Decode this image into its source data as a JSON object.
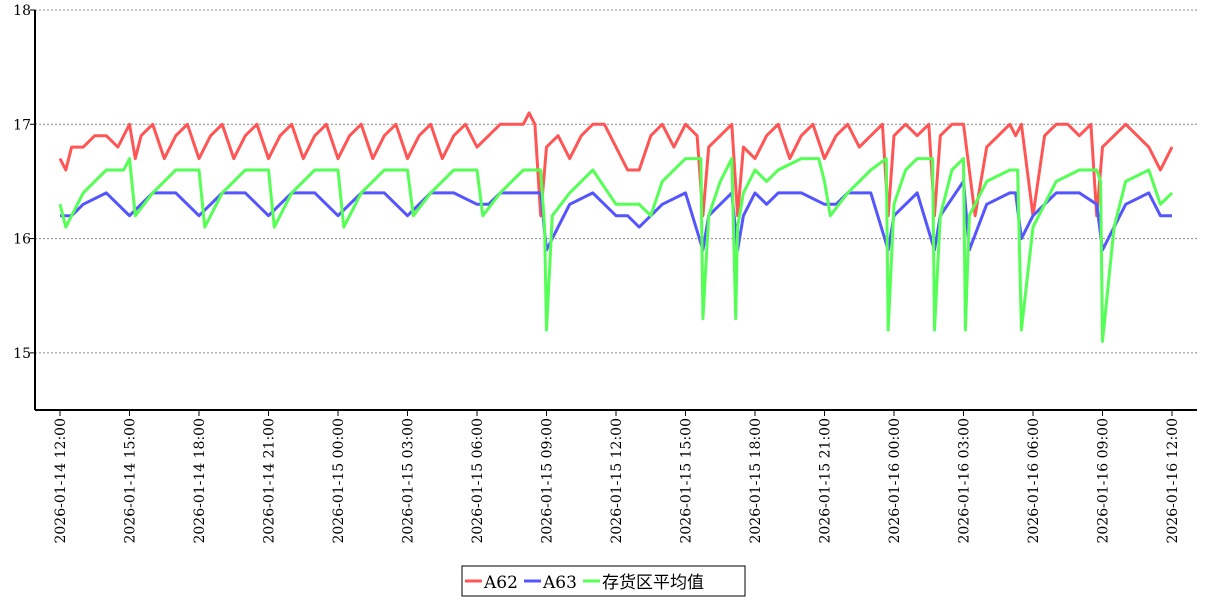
{
  "chart_data": {
    "type": "line",
    "title": "",
    "xlabel": "",
    "ylabel": "",
    "ylim": [
      14.5,
      18
    ],
    "yticks": [
      15,
      16,
      17,
      18
    ],
    "x_range": [
      "2026-01-14 12:00",
      "2026-01-16 12:00"
    ],
    "grid": "horizontal-dotted",
    "legend": "bottom-center",
    "xtick_labels": [
      "2026-01-14 12:00",
      "2026-01-14 15:00",
      "2026-01-14 18:00",
      "2026-01-14 21:00",
      "2026-01-15 00:00",
      "2026-01-15 03:00",
      "2026-01-15 06:00",
      "2026-01-15 09:00",
      "2026-01-15 12:00",
      "2026-01-15 15:00",
      "2026-01-15 18:00",
      "2026-01-15 21:00",
      "2026-01-16 00:00",
      "2026-01-16 03:00",
      "2026-01-16 06:00",
      "2026-01-16 09:00",
      "2026-01-16 12:00"
    ],
    "series": [
      {
        "name": "A62",
        "color": "#ff5555",
        "x": [
          "2026-01-14 12:00",
          "2026-01-14 12:15",
          "2026-01-14 12:30",
          "2026-01-14 13:00",
          "2026-01-14 13:30",
          "2026-01-14 14:00",
          "2026-01-14 14:30",
          "2026-01-14 15:00",
          "2026-01-14 15:15",
          "2026-01-14 15:30",
          "2026-01-14 16:00",
          "2026-01-14 16:30",
          "2026-01-14 17:00",
          "2026-01-14 17:30",
          "2026-01-14 18:00",
          "2026-01-14 18:30",
          "2026-01-14 19:00",
          "2026-01-14 19:30",
          "2026-01-14 20:00",
          "2026-01-14 20:30",
          "2026-01-14 21:00",
          "2026-01-14 21:30",
          "2026-01-14 22:00",
          "2026-01-14 22:30",
          "2026-01-14 23:00",
          "2026-01-14 23:30",
          "2026-01-15 00:00",
          "2026-01-15 00:30",
          "2026-01-15 01:00",
          "2026-01-15 01:30",
          "2026-01-15 02:00",
          "2026-01-15 02:30",
          "2026-01-15 03:00",
          "2026-01-15 03:30",
          "2026-01-15 04:00",
          "2026-01-15 04:30",
          "2026-01-15 05:00",
          "2026-01-15 05:30",
          "2026-01-15 06:00",
          "2026-01-15 06:30",
          "2026-01-15 07:00",
          "2026-01-15 07:30",
          "2026-01-15 08:00",
          "2026-01-15 08:15",
          "2026-01-15 08:30",
          "2026-01-15 08:45",
          "2026-01-15 09:00",
          "2026-01-15 09:30",
          "2026-01-15 10:00",
          "2026-01-15 10:30",
          "2026-01-15 11:00",
          "2026-01-15 11:30",
          "2026-01-15 12:00",
          "2026-01-15 12:30",
          "2026-01-15 13:00",
          "2026-01-15 13:30",
          "2026-01-15 14:00",
          "2026-01-15 14:30",
          "2026-01-15 15:00",
          "2026-01-15 15:30",
          "2026-01-15 15:45",
          "2026-01-15 16:00",
          "2026-01-15 16:30",
          "2026-01-15 17:00",
          "2026-01-15 17:15",
          "2026-01-15 17:30",
          "2026-01-15 18:00",
          "2026-01-15 18:30",
          "2026-01-15 19:00",
          "2026-01-15 19:30",
          "2026-01-15 20:00",
          "2026-01-15 20:30",
          "2026-01-15 21:00",
          "2026-01-15 21:30",
          "2026-01-15 22:00",
          "2026-01-15 22:30",
          "2026-01-15 23:00",
          "2026-01-15 23:30",
          "2026-01-15 23:45",
          "2026-01-16 00:00",
          "2026-01-16 00:30",
          "2026-01-16 01:00",
          "2026-01-16 01:30",
          "2026-01-16 01:45",
          "2026-01-16 02:00",
          "2026-01-16 02:30",
          "2026-01-16 03:00",
          "2026-01-16 03:30",
          "2026-01-16 04:00",
          "2026-01-16 04:30",
          "2026-01-16 05:00",
          "2026-01-16 05:15",
          "2026-01-16 05:30",
          "2026-01-16 06:00",
          "2026-01-16 06:30",
          "2026-01-16 07:00",
          "2026-01-16 07:30",
          "2026-01-16 08:00",
          "2026-01-16 08:30",
          "2026-01-16 08:45",
          "2026-01-16 09:00",
          "2026-01-16 09:30",
          "2026-01-16 10:00",
          "2026-01-16 10:30",
          "2026-01-16 11:00",
          "2026-01-16 11:30",
          "2026-01-16 12:00"
        ],
        "values": [
          16.7,
          16.6,
          16.8,
          16.8,
          16.9,
          16.9,
          16.8,
          17.0,
          16.7,
          16.9,
          17.0,
          16.7,
          16.9,
          17.0,
          16.7,
          16.9,
          17.0,
          16.7,
          16.9,
          17.0,
          16.7,
          16.9,
          17.0,
          16.7,
          16.9,
          17.0,
          16.7,
          16.9,
          17.0,
          16.7,
          16.9,
          17.0,
          16.7,
          16.9,
          17.0,
          16.7,
          16.9,
          17.0,
          16.8,
          16.9,
          17.0,
          17.0,
          17.0,
          17.1,
          17.0,
          16.2,
          16.8,
          16.9,
          16.7,
          16.9,
          17.0,
          17.0,
          16.8,
          16.6,
          16.6,
          16.9,
          17.0,
          16.8,
          17.0,
          16.9,
          16.2,
          16.8,
          16.9,
          17.0,
          16.2,
          16.8,
          16.7,
          16.9,
          17.0,
          16.7,
          16.9,
          17.0,
          16.7,
          16.9,
          17.0,
          16.8,
          16.9,
          17.0,
          16.2,
          16.9,
          17.0,
          16.9,
          17.0,
          16.2,
          16.9,
          17.0,
          17.0,
          16.2,
          16.8,
          16.9,
          17.0,
          16.9,
          17.0,
          16.2,
          16.9,
          17.0,
          17.0,
          16.9,
          17.0,
          16.2,
          16.8,
          16.9,
          17.0,
          16.9,
          16.8,
          16.6,
          16.8
        ]
      },
      {
        "name": "A63",
        "color": "#5555ff",
        "x": [
          "2026-01-14 12:00",
          "2026-01-14 12:30",
          "2026-01-14 13:00",
          "2026-01-14 14:00",
          "2026-01-14 15:00",
          "2026-01-14 15:30",
          "2026-01-14 16:00",
          "2026-01-14 17:00",
          "2026-01-14 18:00",
          "2026-01-14 18:30",
          "2026-01-14 19:00",
          "2026-01-14 20:00",
          "2026-01-14 21:00",
          "2026-01-14 21:30",
          "2026-01-14 22:00",
          "2026-01-14 23:00",
          "2026-01-15 00:00",
          "2026-01-15 00:30",
          "2026-01-15 01:00",
          "2026-01-15 02:00",
          "2026-01-15 03:00",
          "2026-01-15 03:30",
          "2026-01-15 04:00",
          "2026-01-15 05:00",
          "2026-01-15 06:00",
          "2026-01-15 06:30",
          "2026-01-15 07:00",
          "2026-01-15 08:00",
          "2026-01-15 08:45",
          "2026-01-15 09:00",
          "2026-01-15 09:30",
          "2026-01-15 10:00",
          "2026-01-15 11:00",
          "2026-01-15 12:00",
          "2026-01-15 12:30",
          "2026-01-15 13:00",
          "2026-01-15 14:00",
          "2026-01-15 15:00",
          "2026-01-15 15:45",
          "2026-01-15 16:00",
          "2026-01-15 17:00",
          "2026-01-15 17:15",
          "2026-01-15 17:30",
          "2026-01-15 18:00",
          "2026-01-15 18:30",
          "2026-01-15 19:00",
          "2026-01-15 20:00",
          "2026-01-15 21:00",
          "2026-01-15 21:30",
          "2026-01-15 22:00",
          "2026-01-15 23:00",
          "2026-01-15 23:45",
          "2026-01-16 00:00",
          "2026-01-16 01:00",
          "2026-01-16 01:45",
          "2026-01-16 02:00",
          "2026-01-16 03:00",
          "2026-01-16 03:15",
          "2026-01-16 04:00",
          "2026-01-16 05:00",
          "2026-01-16 05:15",
          "2026-01-16 05:30",
          "2026-01-16 06:00",
          "2026-01-16 07:00",
          "2026-01-16 08:00",
          "2026-01-16 08:45",
          "2026-01-16 09:00",
          "2026-01-16 09:30",
          "2026-01-16 10:00",
          "2026-01-16 11:00",
          "2026-01-16 11:30",
          "2026-01-16 12:00"
        ],
        "values": [
          16.2,
          16.2,
          16.3,
          16.4,
          16.2,
          16.3,
          16.4,
          16.4,
          16.2,
          16.3,
          16.4,
          16.4,
          16.2,
          16.3,
          16.4,
          16.4,
          16.2,
          16.3,
          16.4,
          16.4,
          16.2,
          16.3,
          16.4,
          16.4,
          16.3,
          16.3,
          16.4,
          16.4,
          16.4,
          15.9,
          16.1,
          16.3,
          16.4,
          16.2,
          16.2,
          16.1,
          16.3,
          16.4,
          15.9,
          16.2,
          16.4,
          15.9,
          16.2,
          16.4,
          16.3,
          16.4,
          16.4,
          16.3,
          16.3,
          16.4,
          16.4,
          15.9,
          16.2,
          16.4,
          15.9,
          16.2,
          16.5,
          15.9,
          16.3,
          16.4,
          16.4,
          16.0,
          16.2,
          16.4,
          16.4,
          16.3,
          15.9,
          16.1,
          16.3,
          16.4,
          16.2,
          16.2
        ]
      },
      {
        "name": "存货区平均值",
        "color": "#55ff55",
        "x": [
          "2026-01-14 12:00",
          "2026-01-14 12:15",
          "2026-01-14 13:00",
          "2026-01-14 14:00",
          "2026-01-14 14:45",
          "2026-01-14 15:00",
          "2026-01-14 15:15",
          "2026-01-14 16:00",
          "2026-01-14 17:00",
          "2026-01-14 17:45",
          "2026-01-14 18:00",
          "2026-01-14 18:15",
          "2026-01-14 19:00",
          "2026-01-14 20:00",
          "2026-01-14 20:45",
          "2026-01-14 21:00",
          "2026-01-14 21:15",
          "2026-01-14 22:00",
          "2026-01-14 23:00",
          "2026-01-14 23:45",
          "2026-01-15 00:00",
          "2026-01-15 00:15",
          "2026-01-15 01:00",
          "2026-01-15 02:00",
          "2026-01-15 02:45",
          "2026-01-15 03:00",
          "2026-01-15 03:15",
          "2026-01-15 04:00",
          "2026-01-15 05:00",
          "2026-01-15 05:45",
          "2026-01-15 06:00",
          "2026-01-15 06:15",
          "2026-01-15 07:00",
          "2026-01-15 08:00",
          "2026-01-15 08:45",
          "2026-01-15 08:55",
          "2026-01-15 09:00",
          "2026-01-15 09:15",
          "2026-01-15 10:00",
          "2026-01-15 11:00",
          "2026-01-15 12:00",
          "2026-01-15 12:30",
          "2026-01-15 13:00",
          "2026-01-15 13:30",
          "2026-01-15 14:00",
          "2026-01-15 15:00",
          "2026-01-15 15:40",
          "2026-01-15 15:45",
          "2026-01-15 16:00",
          "2026-01-15 16:30",
          "2026-01-15 17:00",
          "2026-01-15 17:10",
          "2026-01-15 17:15",
          "2026-01-15 17:30",
          "2026-01-15 18:00",
          "2026-01-15 18:30",
          "2026-01-15 19:00",
          "2026-01-15 20:00",
          "2026-01-15 20:45",
          "2026-01-15 21:00",
          "2026-01-15 21:15",
          "2026-01-15 22:00",
          "2026-01-15 23:00",
          "2026-01-15 23:40",
          "2026-01-15 23:45",
          "2026-01-16 00:00",
          "2026-01-16 00:30",
          "2026-01-16 01:00",
          "2026-01-16 01:40",
          "2026-01-16 01:45",
          "2026-01-16 02:00",
          "2026-01-16 02:30",
          "2026-01-16 03:00",
          "2026-01-16 03:05",
          "2026-01-16 03:15",
          "2026-01-16 04:00",
          "2026-01-16 05:00",
          "2026-01-16 05:20",
          "2026-01-16 05:30",
          "2026-01-16 06:00",
          "2026-01-16 07:00",
          "2026-01-16 08:00",
          "2026-01-16 08:45",
          "2026-01-16 08:55",
          "2026-01-16 09:00",
          "2026-01-16 09:30",
          "2026-01-16 10:00",
          "2026-01-16 11:00",
          "2026-01-16 11:30",
          "2026-01-16 12:00"
        ],
        "values": [
          16.3,
          16.1,
          16.4,
          16.6,
          16.6,
          16.7,
          16.2,
          16.4,
          16.6,
          16.6,
          16.6,
          16.1,
          16.4,
          16.6,
          16.6,
          16.6,
          16.1,
          16.4,
          16.6,
          16.6,
          16.6,
          16.1,
          16.4,
          16.6,
          16.6,
          16.6,
          16.2,
          16.4,
          16.6,
          16.6,
          16.6,
          16.2,
          16.4,
          16.6,
          16.6,
          16.1,
          15.2,
          16.2,
          16.4,
          16.6,
          16.3,
          16.3,
          16.3,
          16.2,
          16.5,
          16.7,
          16.7,
          15.3,
          16.2,
          16.5,
          16.7,
          15.3,
          16.1,
          16.4,
          16.6,
          16.5,
          16.6,
          16.7,
          16.7,
          16.5,
          16.2,
          16.4,
          16.6,
          16.7,
          15.2,
          16.3,
          16.6,
          16.7,
          16.7,
          15.2,
          16.2,
          16.6,
          16.7,
          15.2,
          16.2,
          16.5,
          16.6,
          16.6,
          15.2,
          16.1,
          16.5,
          16.6,
          16.6,
          16.5,
          15.1,
          16.1,
          16.5,
          16.6,
          16.3,
          16.4
        ]
      }
    ]
  }
}
